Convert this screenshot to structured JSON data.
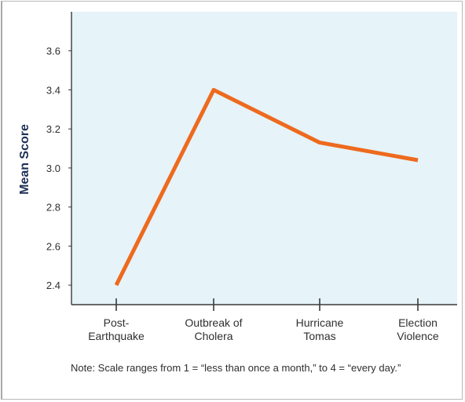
{
  "chart_data": {
    "type": "line",
    "categories": [
      [
        "Post-",
        "Earthquake"
      ],
      [
        "Outbreak of",
        "Cholera"
      ],
      [
        "Hurricane",
        "Tomas"
      ],
      [
        "Election",
        "Violence"
      ]
    ],
    "series": [
      {
        "values": [
          2.4,
          3.4,
          3.13,
          3.04
        ],
        "color": "#ee6a1e"
      }
    ],
    "ylabel": "Mean Score",
    "yticks": [
      "2.4",
      "2.6",
      "2.8",
      "3.0",
      "3.2",
      "3.4",
      "3.6"
    ],
    "ylim": [
      2.3,
      3.8
    ],
    "grid": false,
    "note": "Note: Scale ranges from 1 = “less than once a month,” to 4 = “every day.”"
  },
  "colors": {
    "plot_background": "#e6f3f9",
    "axis": "#3a3a3a",
    "line": "#ee6a1e",
    "ylabel": "#1c2f56"
  }
}
